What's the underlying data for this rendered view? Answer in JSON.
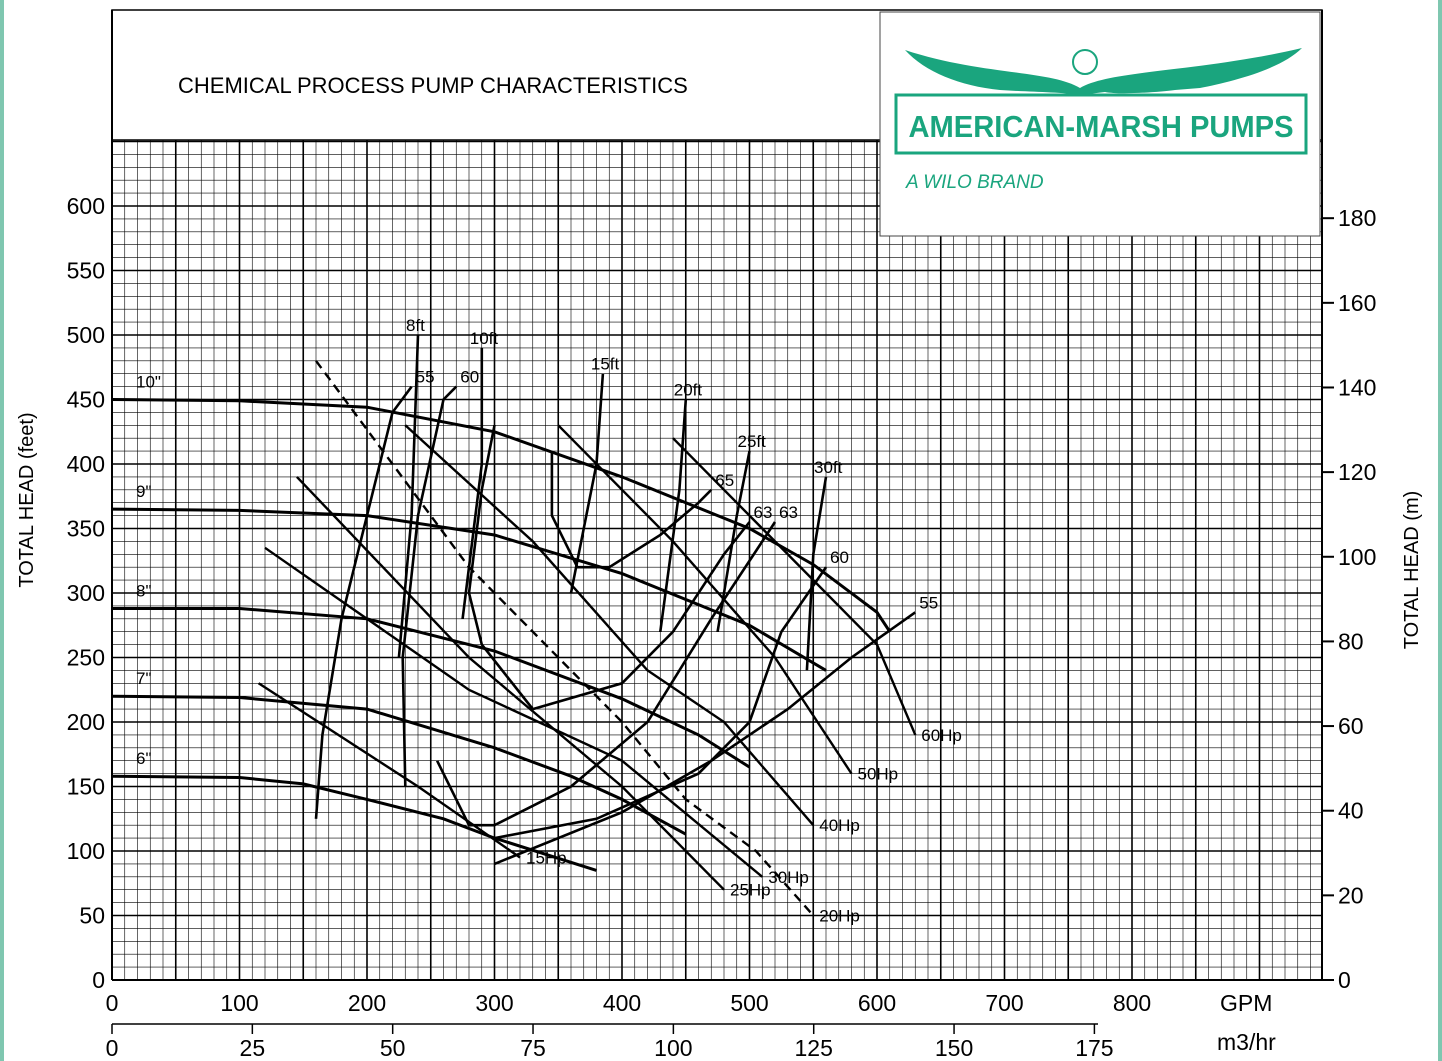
{
  "chart_data": {
    "type": "line",
    "title": "CHEMICAL PROCESS PUMP CHARACTERISTICS",
    "brand": {
      "name": "AMERICAN-MARSH PUMPS",
      "tagline": "A WILO BRAND",
      "color": "#1aa57e"
    },
    "xlabel": "GPM",
    "xlabel_secondary": "m3/hr",
    "ylabel": "TOTAL HEAD (feet)",
    "ylabel_right": "TOTAL HEAD (m)",
    "xlim": [
      0,
      950
    ],
    "ylim": [
      0,
      650
    ],
    "grid": true,
    "x_ticks": [
      "0",
      "100",
      "200",
      "300",
      "400",
      "500",
      "600",
      "700",
      "800"
    ],
    "x2_ticks": [
      "0",
      "25",
      "50",
      "75",
      "100",
      "125",
      "150",
      "175"
    ],
    "y_ticks": [
      "0",
      "50",
      "100",
      "150",
      "200",
      "250",
      "300",
      "350",
      "400",
      "450",
      "500",
      "550",
      "600"
    ],
    "y2_ticks": [
      "0",
      "20",
      "40",
      "60",
      "80",
      "100",
      "120",
      "140",
      "160",
      "180"
    ],
    "impeller_curves": [
      {
        "name": "10\"",
        "points": [
          [
            0,
            450
          ],
          [
            100,
            449
          ],
          [
            200,
            444
          ],
          [
            300,
            425
          ],
          [
            400,
            390
          ],
          [
            500,
            350
          ],
          [
            550,
            322
          ],
          [
            600,
            285
          ],
          [
            610,
            270
          ]
        ]
      },
      {
        "name": "9\"",
        "points": [
          [
            0,
            365
          ],
          [
            100,
            364
          ],
          [
            200,
            360
          ],
          [
            300,
            345
          ],
          [
            400,
            315
          ],
          [
            500,
            275
          ],
          [
            560,
            240
          ]
        ]
      },
      {
        "name": "8\"",
        "points": [
          [
            0,
            288
          ],
          [
            100,
            288
          ],
          [
            200,
            280
          ],
          [
            300,
            255
          ],
          [
            400,
            218
          ],
          [
            460,
            190
          ],
          [
            500,
            165
          ]
        ]
      },
      {
        "name": "7\"",
        "points": [
          [
            0,
            220
          ],
          [
            100,
            219
          ],
          [
            200,
            210
          ],
          [
            300,
            180
          ],
          [
            360,
            158
          ],
          [
            400,
            140
          ],
          [
            450,
            113
          ]
        ]
      },
      {
        "name": "6\"",
        "points": [
          [
            0,
            158
          ],
          [
            100,
            157
          ],
          [
            150,
            152
          ],
          [
            200,
            140
          ],
          [
            260,
            125
          ],
          [
            300,
            110
          ],
          [
            380,
            85
          ]
        ]
      }
    ],
    "efficiency_curves": [
      {
        "name": "55",
        "points": [
          [
            160,
            125
          ],
          [
            165,
            190
          ],
          [
            180,
            280
          ],
          [
            200,
            360
          ],
          [
            220,
            440
          ],
          [
            235,
            460
          ]
        ]
      },
      {
        "name": "55",
        "points": [
          [
            300,
            90
          ],
          [
            400,
            130
          ],
          [
            470,
            170
          ],
          [
            530,
            210
          ],
          [
            580,
            250
          ],
          [
            630,
            285
          ]
        ]
      },
      {
        "name": "60",
        "points": [
          [
            230,
            150
          ],
          [
            228,
            250
          ],
          [
            240,
            360
          ],
          [
            260,
            450
          ],
          [
            270,
            460
          ]
        ]
      },
      {
        "name": "60",
        "points": [
          [
            300,
            110
          ],
          [
            380,
            125
          ],
          [
            460,
            160
          ],
          [
            500,
            200
          ],
          [
            525,
            270
          ],
          [
            560,
            320
          ]
        ]
      },
      {
        "name": "63",
        "points": [
          [
            255,
            170
          ],
          [
            280,
            120
          ],
          [
            300,
            120
          ],
          [
            360,
            150
          ],
          [
            420,
            200
          ],
          [
            470,
            280
          ],
          [
            510,
            340
          ],
          [
            520,
            355
          ]
        ]
      },
      {
        "name": "63",
        "points": [
          [
            300,
            430
          ],
          [
            290,
            380
          ],
          [
            280,
            300
          ],
          [
            290,
            260
          ],
          [
            330,
            210
          ],
          [
            400,
            230
          ],
          [
            440,
            270
          ],
          [
            480,
            330
          ],
          [
            500,
            355
          ]
        ]
      },
      {
        "name": "65",
        "points": [
          [
            345,
            410
          ],
          [
            345,
            360
          ],
          [
            365,
            320
          ],
          [
            390,
            320
          ],
          [
            430,
            345
          ],
          [
            460,
            370
          ],
          [
            470,
            380
          ]
        ]
      }
    ],
    "npshr_curves": [
      {
        "name": "8ft",
        "points": [
          [
            225,
            250
          ],
          [
            235,
            360
          ],
          [
            240,
            500
          ]
        ]
      },
      {
        "name": "10ft",
        "points": [
          [
            275,
            280
          ],
          [
            290,
            400
          ],
          [
            290,
            490
          ]
        ]
      },
      {
        "name": "15ft",
        "points": [
          [
            360,
            300
          ],
          [
            380,
            400
          ],
          [
            385,
            470
          ]
        ]
      },
      {
        "name": "20ft",
        "points": [
          [
            430,
            270
          ],
          [
            445,
            380
          ],
          [
            450,
            450
          ]
        ]
      },
      {
        "name": "25ft",
        "points": [
          [
            475,
            270
          ],
          [
            490,
            360
          ],
          [
            500,
            410
          ]
        ]
      },
      {
        "name": "30ft",
        "points": [
          [
            545,
            240
          ],
          [
            550,
            330
          ],
          [
            560,
            390
          ]
        ]
      }
    ],
    "hp_curves": [
      {
        "name": "15Hp",
        "points": [
          [
            115,
            230
          ],
          [
            240,
            150
          ],
          [
            320,
            95
          ]
        ]
      },
      {
        "name": "20Hp",
        "points": [
          [
            160,
            480
          ],
          [
            280,
            320
          ],
          [
            400,
            200
          ],
          [
            450,
            140
          ],
          [
            505,
            100
          ],
          [
            550,
            50
          ]
        ]
      },
      {
        "name": "25Hp",
        "points": [
          [
            145,
            390
          ],
          [
            280,
            250
          ],
          [
            400,
            150
          ],
          [
            480,
            70
          ]
        ]
      },
      {
        "name": "30Hp",
        "points": [
          [
            120,
            335
          ],
          [
            280,
            225
          ],
          [
            400,
            170
          ],
          [
            510,
            80
          ]
        ]
      },
      {
        "name": "40Hp",
        "points": [
          [
            230,
            430
          ],
          [
            330,
            340
          ],
          [
            420,
            240
          ],
          [
            480,
            200
          ],
          [
            550,
            120
          ]
        ]
      },
      {
        "name": "50Hp",
        "points": [
          [
            350,
            430
          ],
          [
            440,
            340
          ],
          [
            520,
            250
          ],
          [
            580,
            160
          ]
        ]
      },
      {
        "name": "60Hp",
        "points": [
          [
            440,
            420
          ],
          [
            520,
            340
          ],
          [
            600,
            260
          ],
          [
            630,
            190
          ]
        ]
      }
    ]
  },
  "left_axis_label": "TOTAL HEAD (feet)",
  "right_axis_label": "TOTAL HEAD (m)",
  "x_axis_label": "GPM",
  "x2_axis_label": "m3/hr"
}
